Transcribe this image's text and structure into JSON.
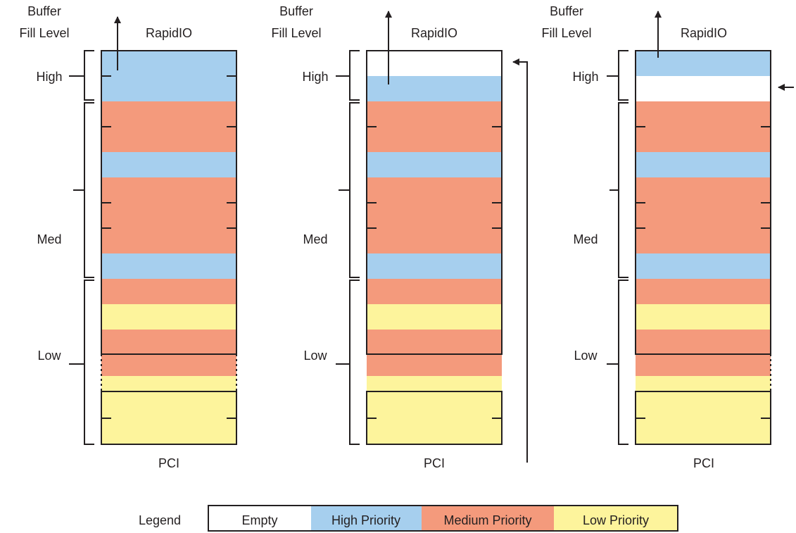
{
  "labels": {
    "buffer_fill_level_line1": "Buffer",
    "buffer_fill_level_line2": "Fill Level",
    "rapidio": "RapidIO",
    "pci": "PCI",
    "high": "High",
    "med": "Med",
    "low": "Low"
  },
  "legend": {
    "title": "Legend",
    "items": [
      {
        "key": "empty",
        "label": "Empty",
        "color": "#ffffff"
      },
      {
        "key": "high",
        "label": "High Priority",
        "color": "#a6cfee"
      },
      {
        "key": "medium",
        "label": "Medium Priority",
        "color": "#f49a7c"
      },
      {
        "key": "low",
        "label": "Low Priority",
        "color": "#fdf49c"
      }
    ]
  },
  "colors": {
    "empty": "#ffffff",
    "high": "#a6cfee",
    "medium": "#f49a7c",
    "low": "#fdf49c",
    "outline": "#231f20"
  },
  "buffers": [
    {
      "segments": [
        "high",
        "high",
        "medium",
        "medium",
        "high",
        "medium",
        "medium",
        "medium",
        "high",
        "medium",
        "low",
        "medium",
        "medium",
        "low",
        "low",
        "low"
      ],
      "arrows": [
        "out-top"
      ]
    },
    {
      "segments": [
        "empty",
        "high",
        "medium",
        "medium",
        "high",
        "medium",
        "medium",
        "medium",
        "high",
        "medium",
        "low",
        "medium",
        "medium",
        "low",
        "low",
        "low"
      ],
      "arrows": [
        "out-top",
        "in-bottom-to-top"
      ]
    },
    {
      "segments": [
        "high",
        "empty",
        "medium",
        "medium",
        "high",
        "medium",
        "medium",
        "medium",
        "high",
        "medium",
        "low",
        "medium",
        "medium",
        "low",
        "low",
        "low"
      ],
      "arrows": [
        "out-top",
        "in-right"
      ]
    }
  ]
}
